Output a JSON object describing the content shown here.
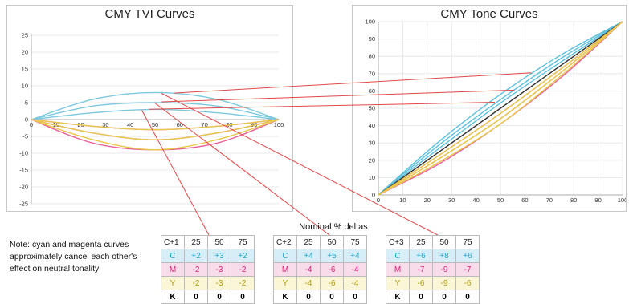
{
  "chart_data": [
    {
      "type": "line",
      "title": "CMY TVI Curves",
      "xlim": [
        0,
        100
      ],
      "ylim": [
        -25,
        25
      ],
      "x_ticks": [
        0,
        10,
        20,
        30,
        40,
        50,
        60,
        70,
        80,
        90,
        100
      ],
      "y_ticks": [
        25,
        20,
        15,
        10,
        5,
        0,
        -5,
        -10,
        -15,
        -20,
        -25
      ],
      "grid": true,
      "series": [
        {
          "color": "#7cc9e0",
          "x": [
            0,
            25,
            50,
            75,
            100
          ],
          "y": [
            0,
            6,
            8,
            6,
            0
          ]
        },
        {
          "color": "#7cc9e0",
          "x": [
            0,
            25,
            50,
            75,
            100
          ],
          "y": [
            0,
            4,
            5,
            4,
            0
          ]
        },
        {
          "color": "#7cc9e0",
          "x": [
            0,
            25,
            50,
            75,
            100
          ],
          "y": [
            0,
            2,
            3,
            2,
            0
          ]
        },
        {
          "color": "#e8609a",
          "x": [
            0,
            25,
            50,
            75,
            100
          ],
          "y": [
            0,
            -2,
            -3,
            -2,
            0
          ]
        },
        {
          "color": "#e8609a",
          "x": [
            0,
            25,
            50,
            75,
            100
          ],
          "y": [
            0,
            -4,
            -6,
            -4,
            0
          ]
        },
        {
          "color": "#e8609a",
          "x": [
            0,
            25,
            50,
            75,
            100
          ],
          "y": [
            0,
            -7,
            -9,
            -7,
            0
          ]
        },
        {
          "color": "#e8c84a",
          "x": [
            0,
            25,
            50,
            75,
            100
          ],
          "y": [
            0,
            -2,
            -3,
            -2,
            0
          ]
        },
        {
          "color": "#e8c84a",
          "x": [
            0,
            25,
            50,
            75,
            100
          ],
          "y": [
            0,
            -4,
            -6,
            -4,
            0
          ]
        },
        {
          "color": "#e8c84a",
          "x": [
            0,
            25,
            50,
            75,
            100
          ],
          "y": [
            0,
            -6,
            -9,
            -6,
            0
          ]
        }
      ]
    },
    {
      "type": "line",
      "title": "CMY Tone Curves",
      "xlim": [
        0,
        100
      ],
      "ylim": [
        0,
        100
      ],
      "x_ticks": [
        0,
        10,
        20,
        30,
        40,
        50,
        60,
        70,
        80,
        90,
        100
      ],
      "y_ticks": [
        100,
        90,
        80,
        70,
        60,
        50,
        40,
        30,
        20,
        10,
        0
      ],
      "grid": true,
      "series": [
        {
          "color": "#5cc0dc",
          "x": [
            0,
            25,
            50,
            75,
            100
          ],
          "y": [
            0,
            31,
            58,
            81,
            100
          ]
        },
        {
          "color": "#5cc0dc",
          "x": [
            0,
            25,
            50,
            75,
            100
          ],
          "y": [
            0,
            29,
            55,
            79,
            100
          ]
        },
        {
          "color": "#5cc0dc",
          "x": [
            0,
            25,
            50,
            75,
            100
          ],
          "y": [
            0,
            27,
            53,
            77,
            100
          ]
        },
        {
          "color": "#333333",
          "x": [
            0,
            100
          ],
          "y": [
            0,
            100
          ]
        },
        {
          "color": "#e8609a",
          "x": [
            0,
            25,
            50,
            75,
            100
          ],
          "y": [
            0,
            23,
            47,
            73,
            100
          ]
        },
        {
          "color": "#e89a6a",
          "x": [
            0,
            25,
            50,
            75,
            100
          ],
          "y": [
            0,
            21,
            44,
            71,
            100
          ]
        },
        {
          "color": "#e8609a",
          "x": [
            0,
            25,
            50,
            75,
            100
          ],
          "y": [
            0,
            18,
            41,
            68,
            100
          ]
        },
        {
          "color": "#e8c84a",
          "x": [
            0,
            25,
            50,
            75,
            100
          ],
          "y": [
            0,
            23,
            47,
            73,
            100
          ]
        },
        {
          "color": "#e8c84a",
          "x": [
            0,
            25,
            50,
            75,
            100
          ],
          "y": [
            0,
            21,
            44,
            71,
            100
          ]
        },
        {
          "color": "#e8c84a",
          "x": [
            0,
            25,
            50,
            75,
            100
          ],
          "y": [
            0,
            19,
            41,
            69,
            100
          ]
        }
      ]
    }
  ],
  "nominal_title": "Nominal % deltas",
  "note": "Note: cyan and magenta curves approximately cancel each other's effect on neutral tonality",
  "colors": {
    "cyan": "#1fa6d0",
    "magenta": "#d9247a",
    "yellow": "#b19a14",
    "connector": "#e04848"
  },
  "tables": [
    {
      "rows": [
        [
          "C+1",
          "25",
          "50",
          "75"
        ],
        [
          "C",
          "+2",
          "+3",
          "+2"
        ],
        [
          "M",
          "-2",
          "-3",
          "-2"
        ],
        [
          "Y",
          "-2",
          "-3",
          "-2"
        ],
        [
          "K",
          "0",
          "0",
          "0"
        ]
      ]
    },
    {
      "rows": [
        [
          "C+2",
          "25",
          "50",
          "75"
        ],
        [
          "C",
          "+4",
          "+5",
          "+4"
        ],
        [
          "M",
          "-4",
          "-6",
          "-4"
        ],
        [
          "Y",
          "-4",
          "-6",
          "-4"
        ],
        [
          "K",
          "0",
          "0",
          "0"
        ]
      ]
    },
    {
      "rows": [
        [
          "C+3",
          "25",
          "50",
          "75"
        ],
        [
          "C",
          "+6",
          "+8",
          "+6"
        ],
        [
          "M",
          "-7",
          "-9",
          "-7"
        ],
        [
          "Y",
          "-6",
          "-9",
          "-6"
        ],
        [
          "K",
          "0",
          "0",
          "0"
        ]
      ]
    }
  ]
}
